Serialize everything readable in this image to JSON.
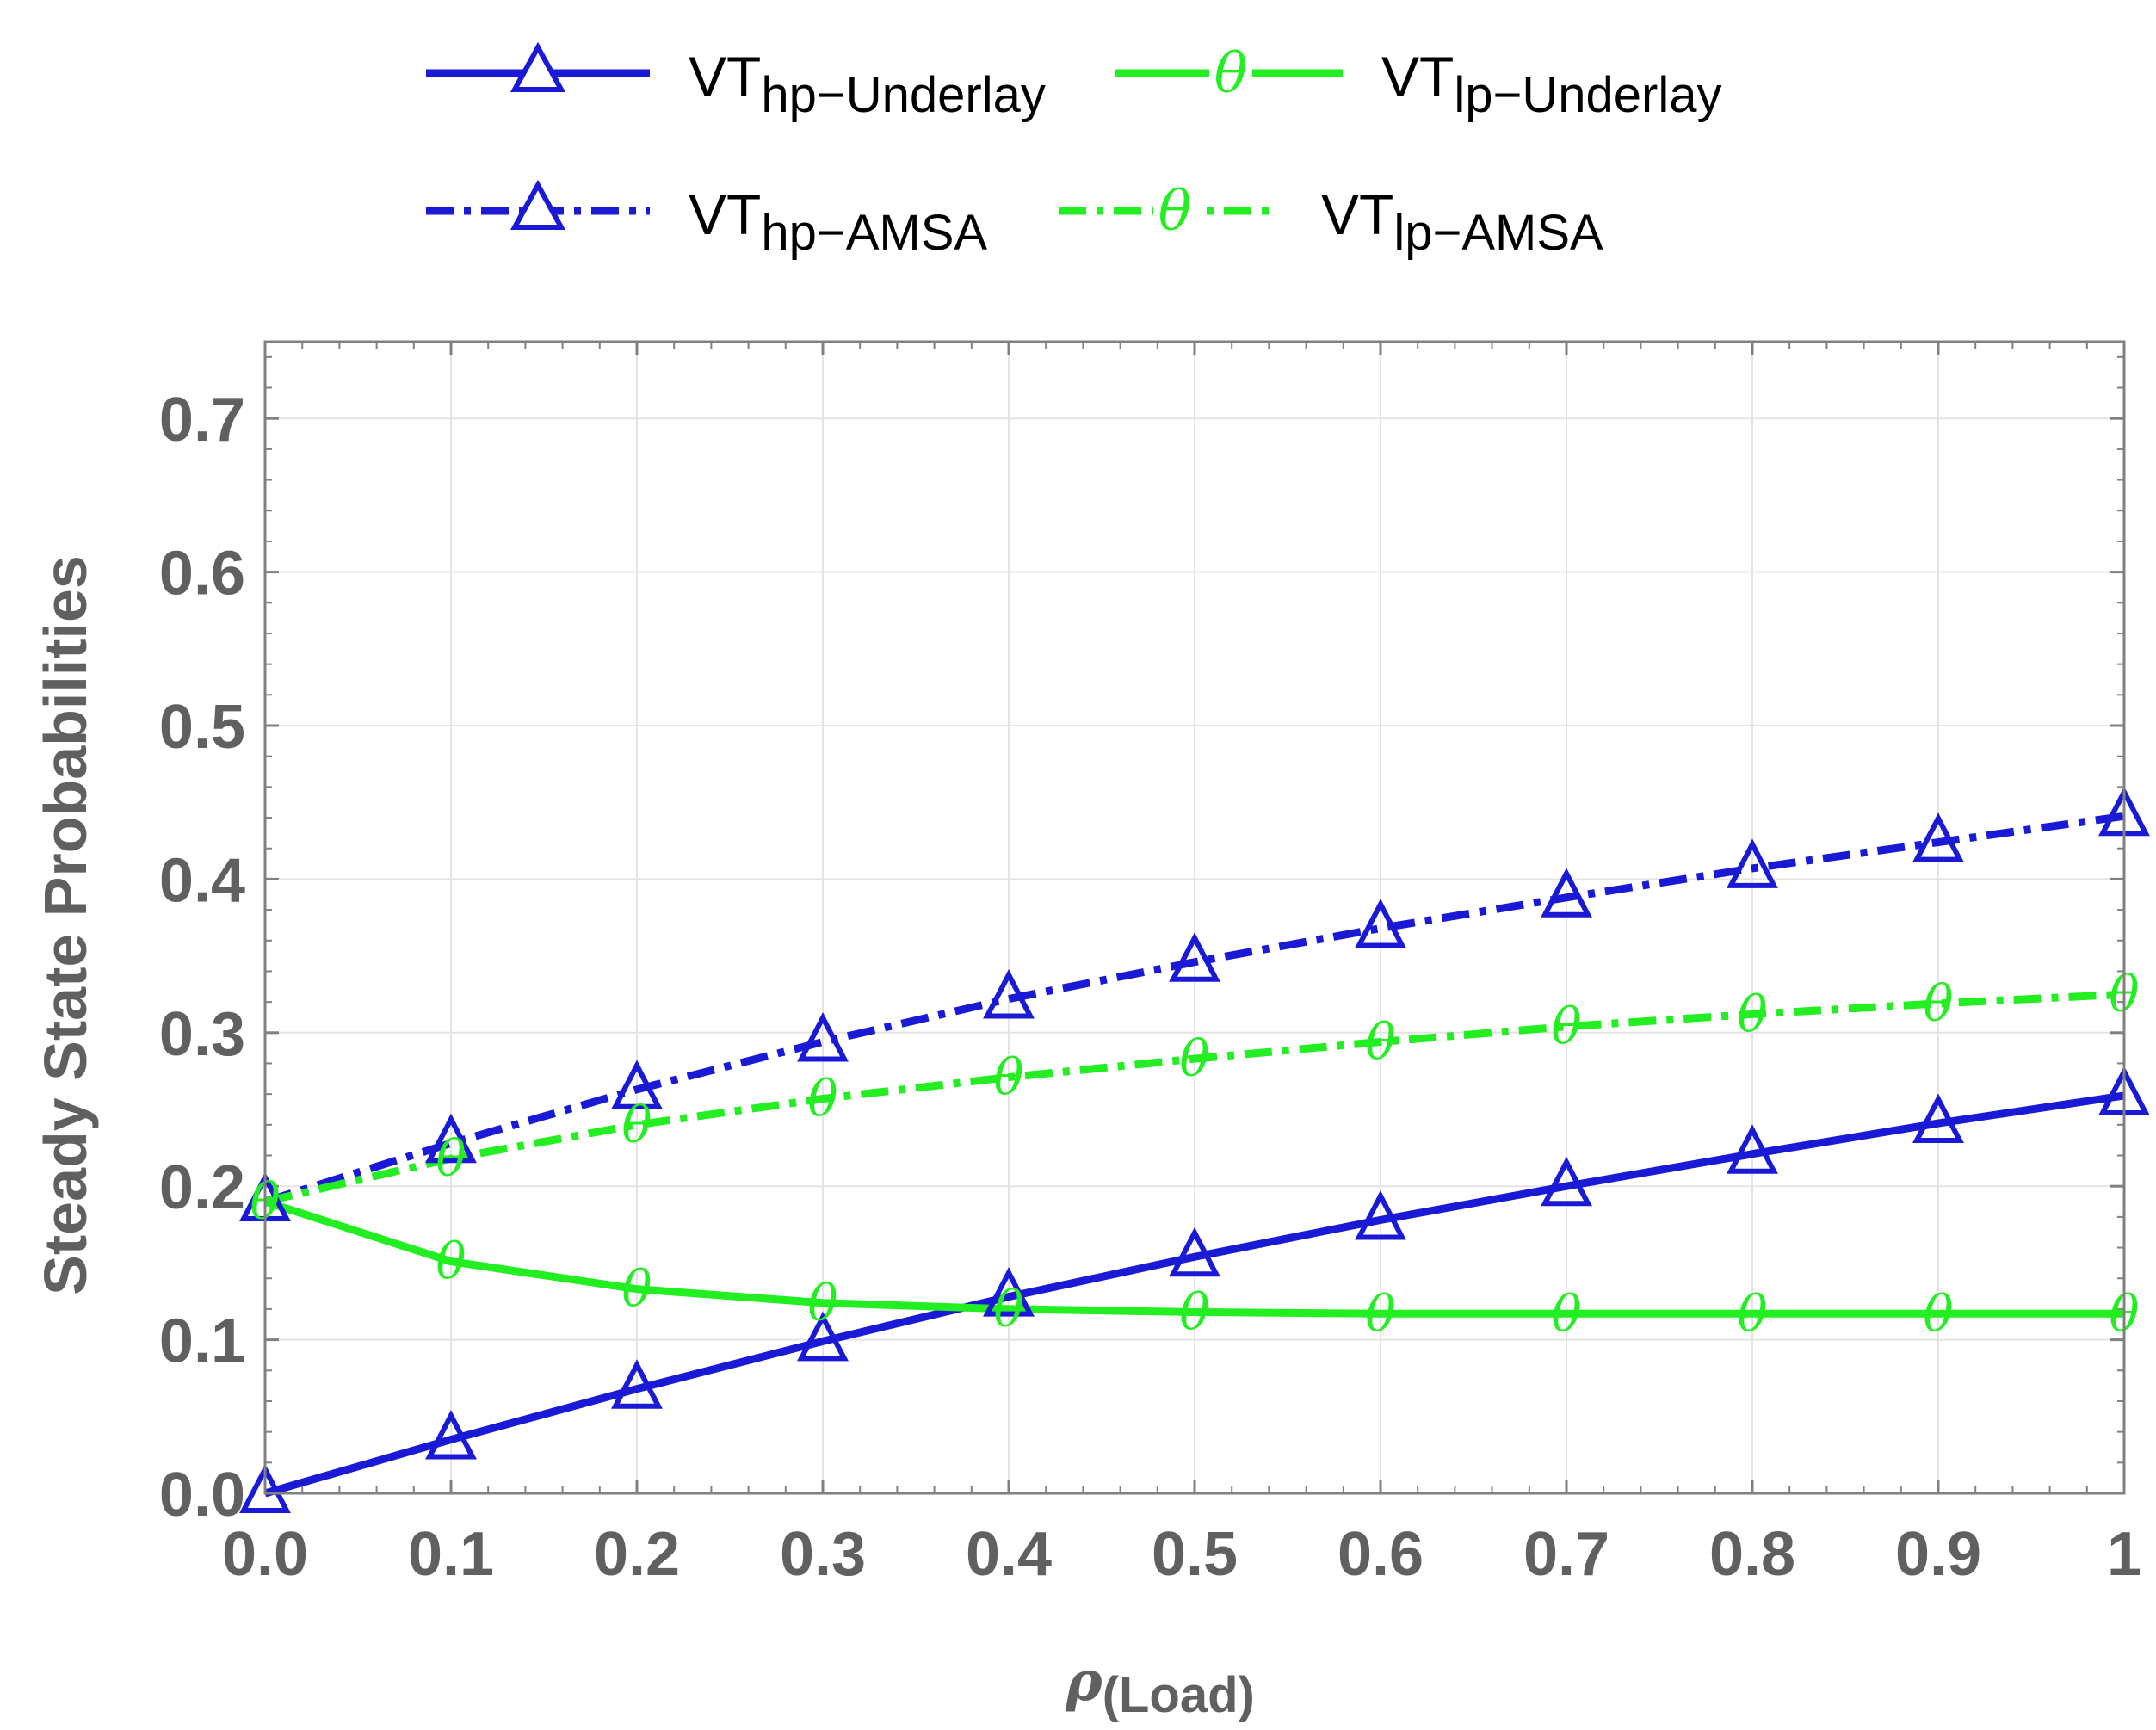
{
  "chart_data": {
    "type": "line",
    "title": "",
    "xlabel": "ρ",
    "xlabel_sub": "(Load)",
    "ylabel": "Steady State Probabilities",
    "xlim": [
      0,
      1
    ],
    "ylim": [
      0,
      0.75
    ],
    "grid": true,
    "legend_position": "top",
    "x_ticks": [
      "0.0",
      "0.1",
      "0.2",
      "0.3",
      "0.4",
      "0.5",
      "0.6",
      "0.7",
      "0.8",
      "0.9",
      "1"
    ],
    "y_ticks": [
      "0.0",
      "0.1",
      "0.2",
      "0.3",
      "0.4",
      "0.5",
      "0.6",
      "0.7"
    ],
    "x": [
      0,
      0.1,
      0.2,
      0.3,
      0.4,
      0.5,
      0.6,
      0.7,
      0.8,
      0.9,
      1.0
    ],
    "series": [
      {
        "name": "VT hp-Underlay",
        "label_main": "VT",
        "label_sub": "hp−Underlay",
        "color": "#1a1ad6",
        "line_style": "solid",
        "marker": "triangle",
        "values": [
          0.0,
          0.035,
          0.068,
          0.099,
          0.128,
          0.154,
          0.178,
          0.2,
          0.221,
          0.241,
          0.259
        ]
      },
      {
        "name": "VT lp-Underlay",
        "label_main": "VT",
        "label_sub": "lp−Underlay",
        "color": "#22ee22",
        "line_style": "solid",
        "marker": "theta",
        "marker_glyph": "θ",
        "values": [
          0.19,
          0.151,
          0.133,
          0.124,
          0.12,
          0.118,
          0.117,
          0.117,
          0.117,
          0.117,
          0.117
        ]
      },
      {
        "name": "VT hp-AMSA",
        "label_main": "VT",
        "label_sub": "hp−AMSA",
        "color": "#1a1ad6",
        "line_style": "dashdot",
        "marker": "triangle",
        "values": [
          0.19,
          0.228,
          0.263,
          0.294,
          0.322,
          0.346,
          0.368,
          0.388,
          0.407,
          0.424,
          0.441
        ]
      },
      {
        "name": "VT lp-AMSA",
        "label_main": "VT",
        "label_sub": "lp−AMSA",
        "color": "#22ee22",
        "line_style": "dashdot",
        "marker": "theta",
        "marker_glyph": "θ",
        "values": [
          0.19,
          0.218,
          0.24,
          0.257,
          0.271,
          0.283,
          0.294,
          0.304,
          0.312,
          0.319,
          0.325
        ]
      }
    ]
  }
}
